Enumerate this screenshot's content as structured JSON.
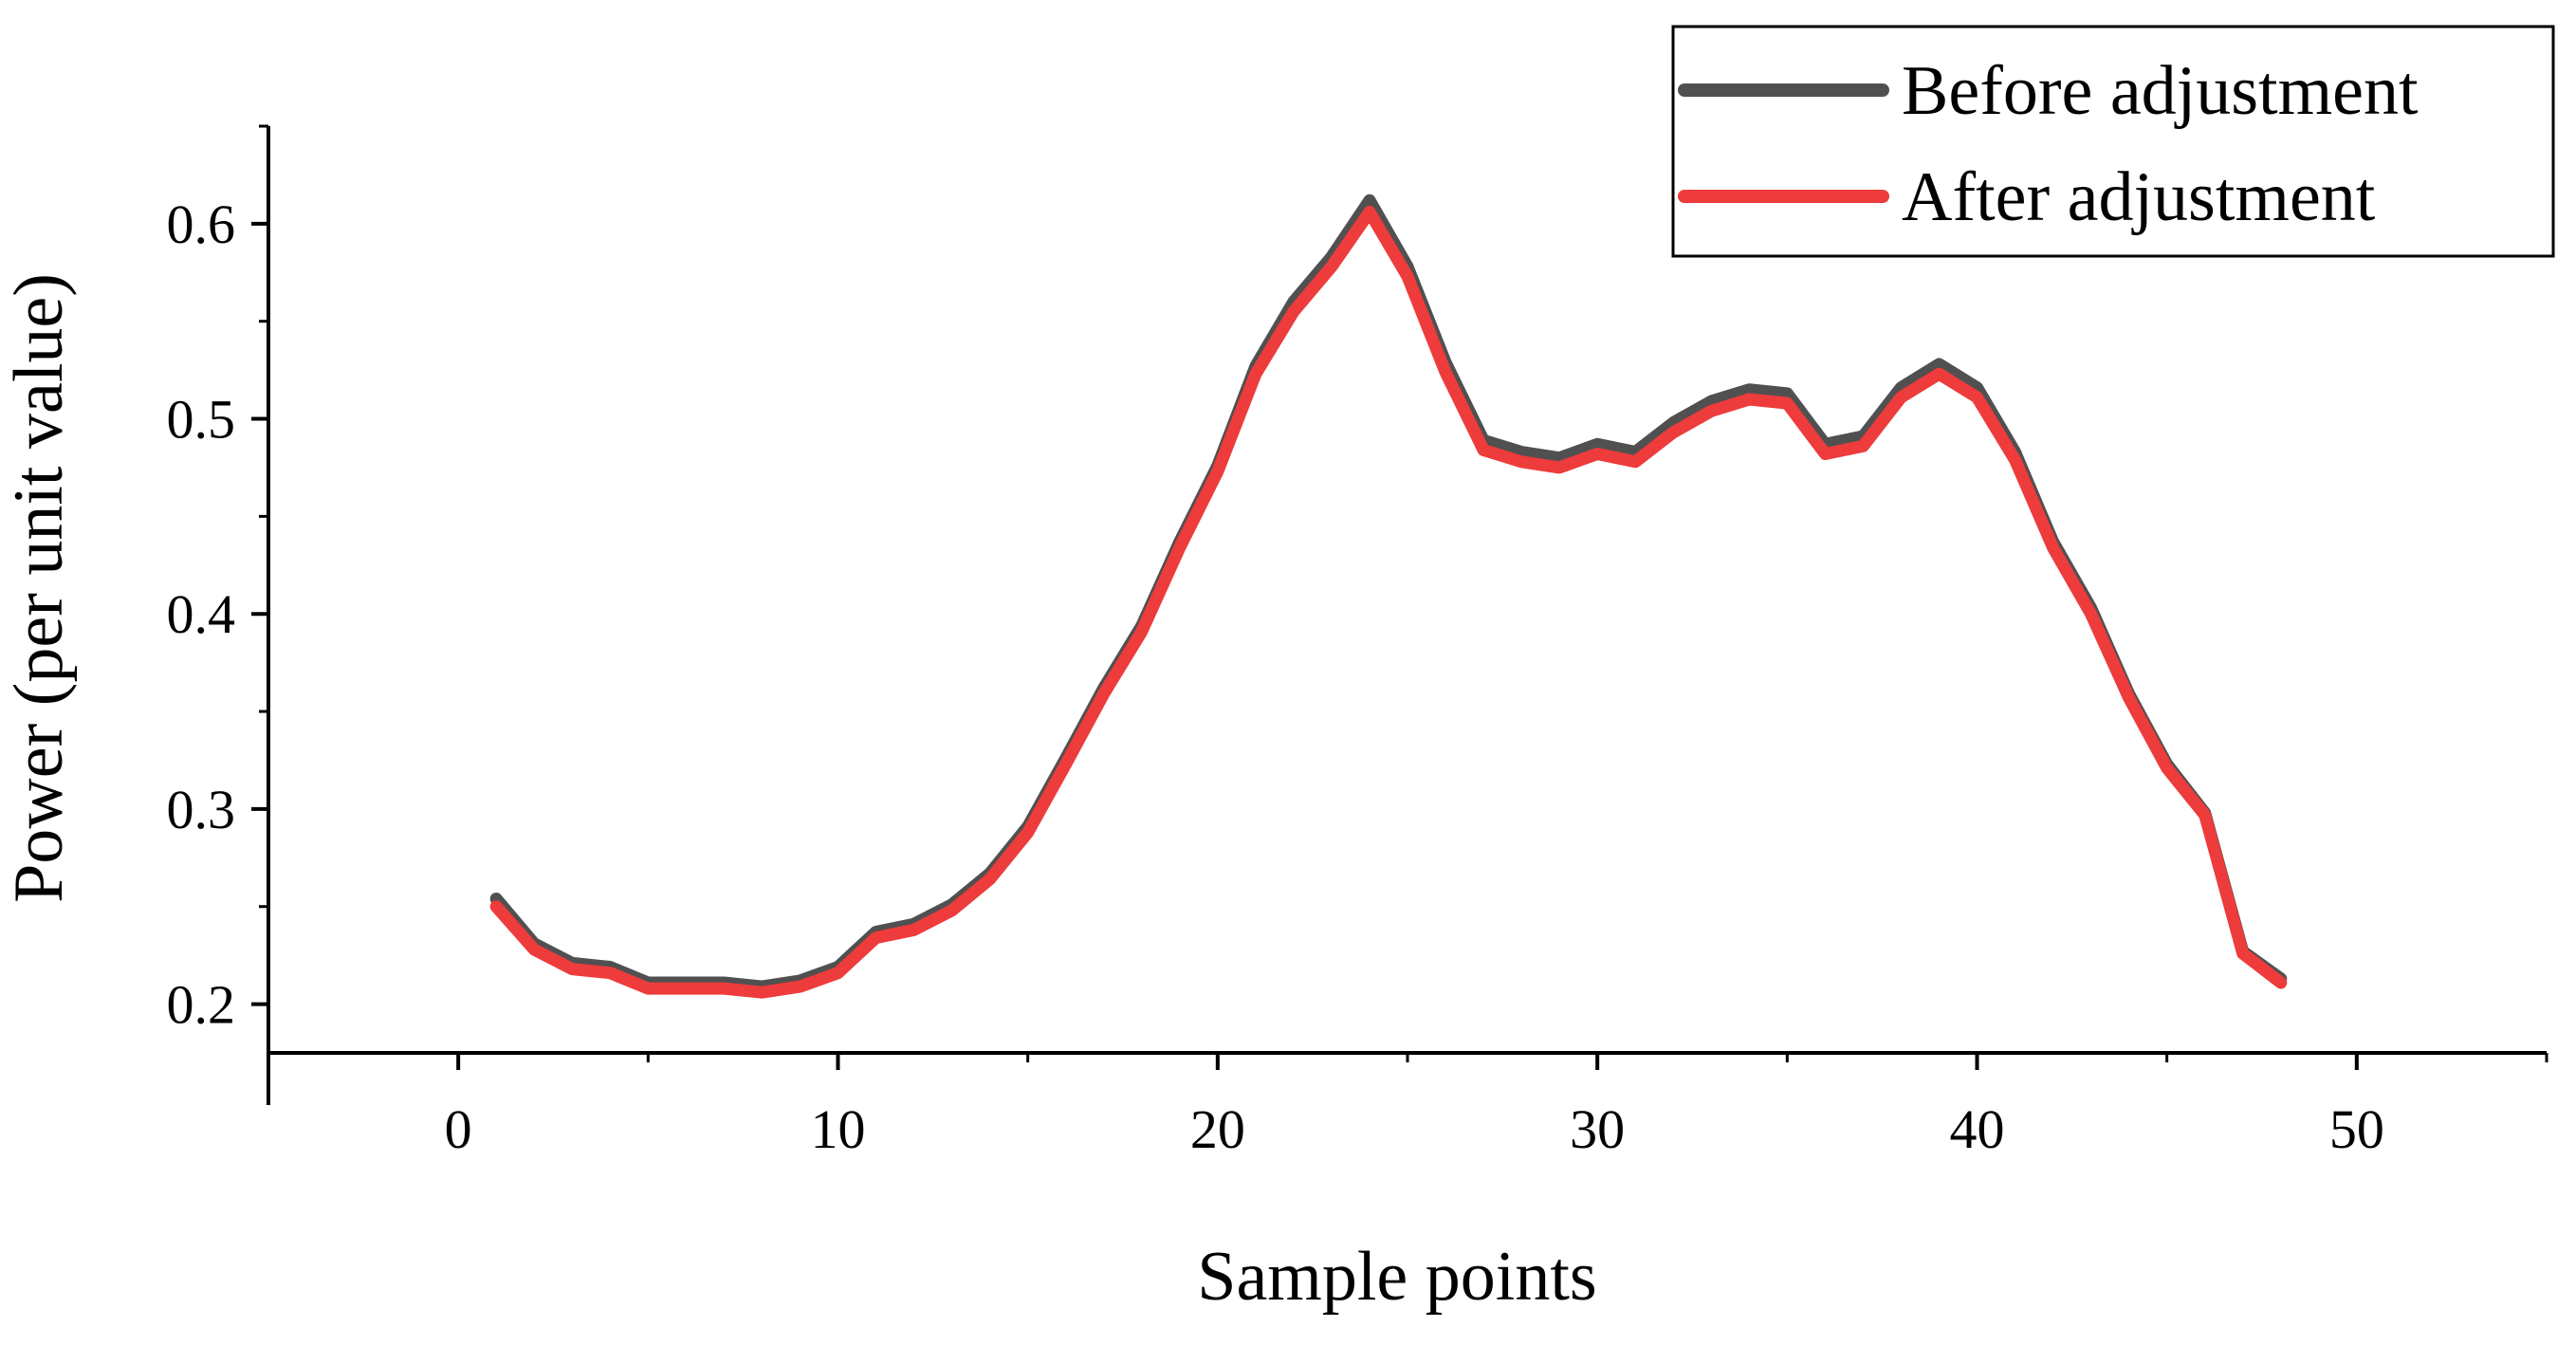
{
  "chart_data": {
    "type": "line",
    "xlabel": "Sample points",
    "ylabel": "Power (per unit value)",
    "xlim": [
      -5,
      55
    ],
    "ylim": [
      0.175,
      0.65
    ],
    "xticks": [
      0,
      10,
      20,
      30,
      40,
      50
    ],
    "yticks": [
      0.2,
      0.3,
      0.4,
      0.5,
      0.6
    ],
    "grid": false,
    "legend_position": "top-right",
    "x": [
      1,
      2,
      3,
      4,
      5,
      6,
      7,
      8,
      9,
      10,
      11,
      12,
      13,
      14,
      15,
      16,
      17,
      18,
      19,
      20,
      21,
      22,
      23,
      24,
      25,
      26,
      27,
      28,
      29,
      30,
      31,
      32,
      33,
      34,
      35,
      36,
      37,
      38,
      39,
      40,
      41,
      42,
      43,
      44,
      45,
      46,
      47,
      48
    ],
    "series": [
      {
        "name": "Before adjustment",
        "color": "#505050",
        "values": [
          0.254,
          0.231,
          0.221,
          0.219,
          0.211,
          0.211,
          0.211,
          0.209,
          0.212,
          0.219,
          0.237,
          0.241,
          0.251,
          0.267,
          0.291,
          0.326,
          0.362,
          0.394,
          0.437,
          0.476,
          0.527,
          0.56,
          0.583,
          0.612,
          0.578,
          0.529,
          0.489,
          0.483,
          0.48,
          0.487,
          0.483,
          0.498,
          0.509,
          0.515,
          0.513,
          0.487,
          0.491,
          0.516,
          0.528,
          0.516,
          0.483,
          0.437,
          0.403,
          0.359,
          0.323,
          0.298,
          0.227,
          0.213
        ]
      },
      {
        "name": "After adjustment",
        "color": "#ee3b3b",
        "values": [
          0.25,
          0.228,
          0.218,
          0.216,
          0.208,
          0.208,
          0.208,
          0.206,
          0.209,
          0.216,
          0.234,
          0.238,
          0.248,
          0.264,
          0.288,
          0.323,
          0.359,
          0.391,
          0.434,
          0.473,
          0.523,
          0.555,
          0.578,
          0.606,
          0.573,
          0.524,
          0.484,
          0.478,
          0.475,
          0.482,
          0.478,
          0.493,
          0.504,
          0.51,
          0.508,
          0.482,
          0.486,
          0.511,
          0.523,
          0.511,
          0.479,
          0.434,
          0.4,
          0.357,
          0.321,
          0.297,
          0.226,
          0.211
        ]
      }
    ]
  }
}
